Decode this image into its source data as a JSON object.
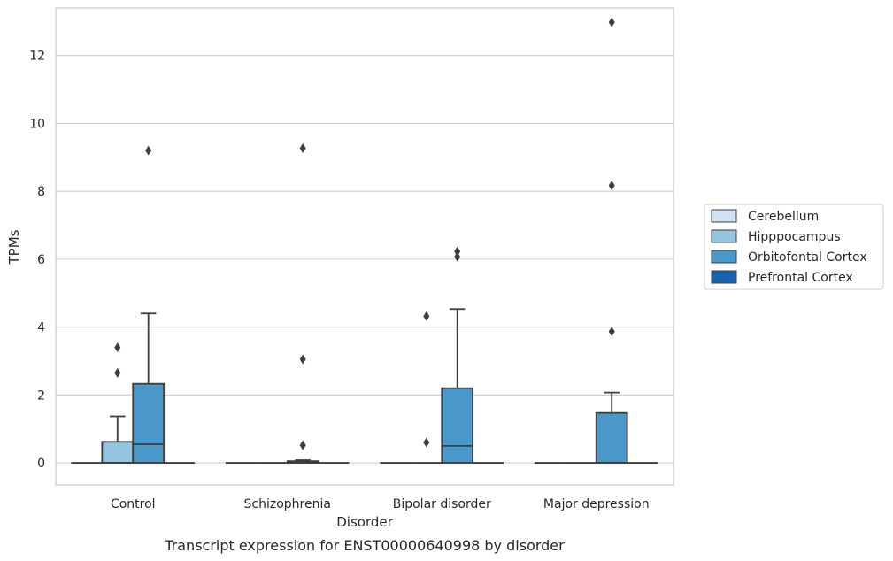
{
  "chart_data": {
    "type": "box",
    "title": "",
    "caption": "Transcript expression for ENST00000640998 by disorder",
    "xlabel": "Disorder",
    "ylabel": "TPMs",
    "ylim": [
      -0.65,
      13.4
    ],
    "yticks": [
      0,
      2,
      4,
      6,
      8,
      10,
      12
    ],
    "grid": true,
    "legend_position": "right",
    "categories": [
      "Control",
      "Schizophrenia",
      "Bipolar disorder",
      "Major depression"
    ],
    "series": [
      {
        "name": "Cerebellum",
        "color": "#d0e1f2",
        "boxes": [
          {
            "q1": 0,
            "median": 0,
            "q3": 0,
            "whisker_low": 0,
            "whisker_high": 0,
            "outliers": []
          },
          {
            "q1": 0,
            "median": 0,
            "q3": 0,
            "whisker_low": 0,
            "whisker_high": 0,
            "outliers": []
          },
          {
            "q1": 0,
            "median": 0,
            "q3": 0,
            "whisker_low": 0,
            "whisker_high": 0,
            "outliers": []
          },
          {
            "q1": 0,
            "median": 0,
            "q3": 0,
            "whisker_low": 0,
            "whisker_high": 0,
            "outliers": []
          }
        ]
      },
      {
        "name": "Hipppocampus",
        "color": "#94c4df",
        "boxes": [
          {
            "q1": 0,
            "median": 0,
            "q3": 0.62,
            "whisker_low": 0,
            "whisker_high": 1.37,
            "outliers": [
              2.65,
              3.4
            ]
          },
          {
            "q1": 0,
            "median": 0,
            "q3": 0,
            "whisker_low": 0,
            "whisker_high": 0,
            "outliers": []
          },
          {
            "q1": 0,
            "median": 0,
            "q3": 0,
            "whisker_low": 0,
            "whisker_high": 0,
            "outliers": [
              0.6,
              4.32
            ]
          },
          {
            "q1": 0,
            "median": 0,
            "q3": 0,
            "whisker_low": 0,
            "whisker_high": 0,
            "outliers": []
          }
        ]
      },
      {
        "name": "Orbitofontal Cortex",
        "color": "#4a98c9",
        "boxes": [
          {
            "q1": 0,
            "median": 0.55,
            "q3": 2.33,
            "whisker_low": 0,
            "whisker_high": 4.4,
            "outliers": [
              9.2
            ]
          },
          {
            "q1": 0,
            "median": 0.02,
            "q3": 0.05,
            "whisker_low": 0,
            "whisker_high": 0.08,
            "outliers": [
              0.52,
              3.05,
              9.27
            ]
          },
          {
            "q1": 0,
            "median": 0.5,
            "q3": 2.2,
            "whisker_low": 0,
            "whisker_high": 4.53,
            "outliers": [
              6.07,
              6.23
            ]
          },
          {
            "q1": 0,
            "median": 0,
            "q3": 1.47,
            "whisker_low": 0,
            "whisker_high": 2.07,
            "outliers": [
              3.87,
              8.17,
              12.98
            ]
          }
        ]
      },
      {
        "name": "Prefrontal Cortex",
        "color": "#1764ab",
        "boxes": [
          {
            "q1": 0,
            "median": 0,
            "q3": 0,
            "whisker_low": 0,
            "whisker_high": 0,
            "outliers": []
          },
          {
            "q1": 0,
            "median": 0,
            "q3": 0,
            "whisker_low": 0,
            "whisker_high": 0,
            "outliers": []
          },
          {
            "q1": 0,
            "median": 0,
            "q3": 0,
            "whisker_low": 0,
            "whisker_high": 0,
            "outliers": []
          },
          {
            "q1": 0,
            "median": 0,
            "q3": 0,
            "whisker_low": 0,
            "whisker_high": 0,
            "outliers": []
          }
        ]
      }
    ]
  }
}
